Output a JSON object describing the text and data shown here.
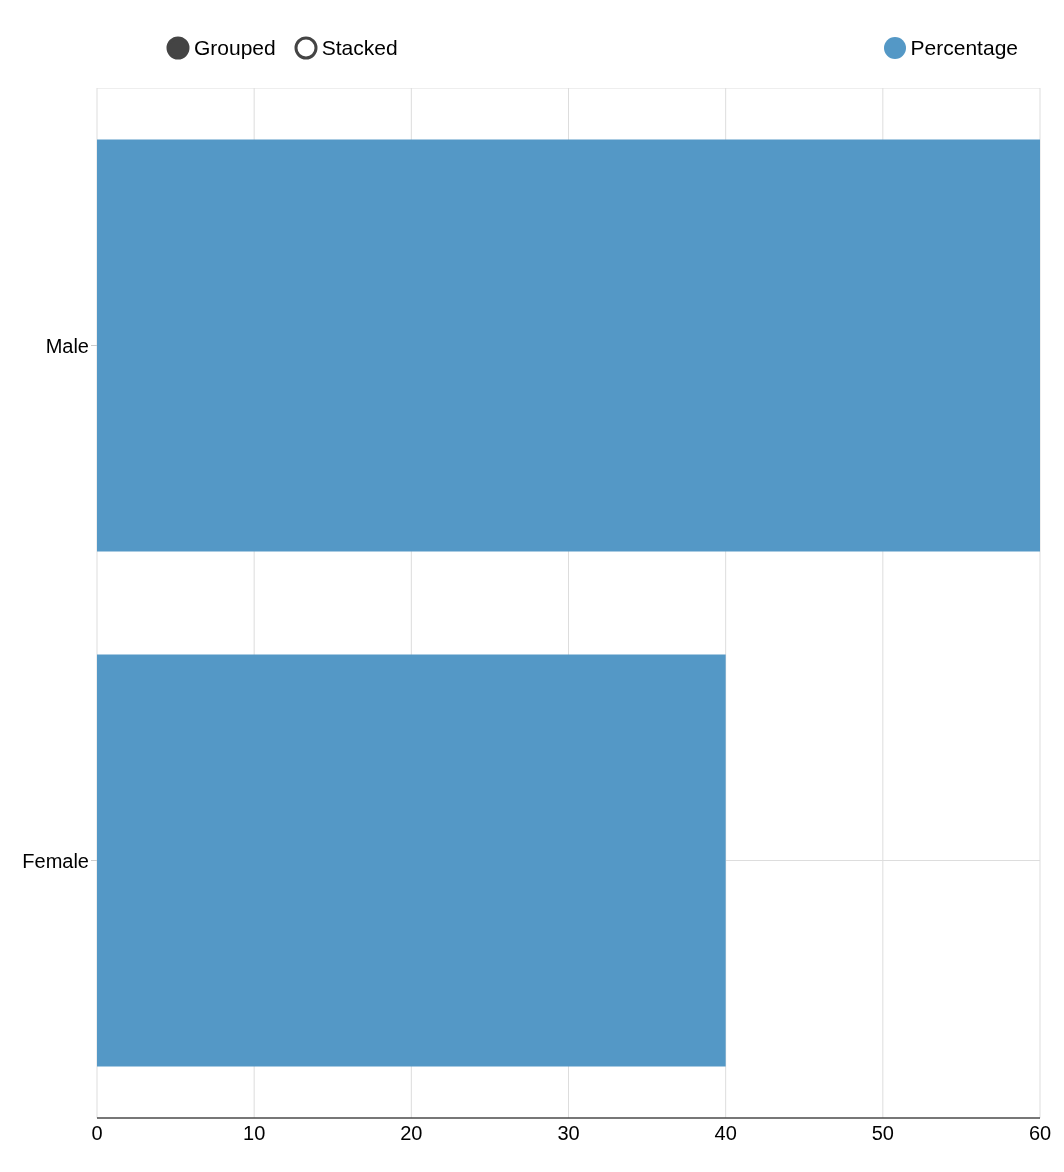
{
  "chart_data": {
    "type": "bar",
    "orientation": "horizontal",
    "categories": [
      "Male",
      "Female"
    ],
    "series": [
      {
        "name": "Percentage",
        "color": "#5498c6",
        "values": [
          60,
          40
        ]
      }
    ],
    "xlim": [
      0,
      60
    ],
    "xticks": [
      0,
      10,
      20,
      30,
      40,
      50,
      60
    ],
    "grid": true,
    "legend": "top right",
    "annotations": [
      "Grouped",
      "Stacked"
    ]
  }
}
